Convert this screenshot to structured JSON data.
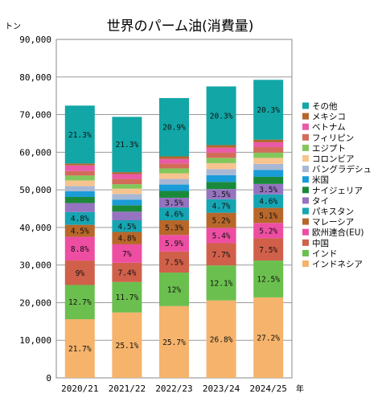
{
  "chart_data": {
    "type": "bar",
    "stacked": true,
    "title": "世界のパーム油(消費量)",
    "ylabel": "トン",
    "xlabel": "年",
    "ylim": [
      0,
      90000
    ],
    "yticks": [
      "0",
      "10,000",
      "20,000",
      "30,000",
      "40,000",
      "50,000",
      "60,000",
      "70,000",
      "80,000",
      "90,000"
    ],
    "grid": true,
    "legend_position": "right",
    "categories": [
      "2020/21",
      "2021/22",
      "2022/23",
      "2023/24",
      "2024/25"
    ],
    "series": [
      {
        "name": "インドネシア",
        "color": "#F5B36B",
        "values": [
          15600,
          17400,
          19100,
          20600,
          21400
        ],
        "labels": [
          "21.7%",
          "25.1%",
          "25.7%",
          "26.8%",
          "27.2%"
        ]
      },
      {
        "name": "インド",
        "color": "#6BBF4E",
        "values": [
          9100,
          8100,
          8900,
          9300,
          9800
        ],
        "labels": [
          "12.7%",
          "11.7%",
          "12%",
          "12.1%",
          "12.5%"
        ]
      },
      {
        "name": "中国",
        "color": "#D0604A",
        "values": [
          6500,
          5100,
          5600,
          5900,
          5900
        ],
        "labels": [
          "9%",
          "7.4%",
          "7.5%",
          "7.7%",
          "7.5%"
        ]
      },
      {
        "name": "欧州連合(EU)",
        "color": "#EE4EA2",
        "values": [
          6300,
          4900,
          4400,
          4100,
          4100
        ],
        "labels": [
          "8.8%",
          "7%",
          "5.9%",
          "5.4%",
          "5.2%"
        ]
      },
      {
        "name": "マレーシア",
        "color": "#B8672A",
        "values": [
          3200,
          3300,
          3900,
          4000,
          4000
        ],
        "labels": [
          "4.5%",
          "4.8%",
          "5.3%",
          "5.2%",
          "5.1%"
        ]
      },
      {
        "name": "パキスタン",
        "color": "#16A5B2",
        "values": [
          3400,
          3100,
          3400,
          3600,
          3600
        ],
        "labels": [
          "4.8%",
          "4.5%",
          "4.6%",
          "4.7%",
          "4.6%"
        ]
      },
      {
        "name": "タイ",
        "color": "#9573C0",
        "values": [
          2400,
          2300,
          2600,
          2700,
          2750
        ],
        "labels": [
          "",
          "",
          "3.5%",
          "3.5%",
          "3.5%"
        ]
      },
      {
        "name": "ナイジェリア",
        "color": "#1A8A3A",
        "values": [
          1600,
          1700,
          1800,
          1900,
          1900
        ],
        "labels": [
          "",
          "",
          "",
          "",
          ""
        ]
      },
      {
        "name": "米国",
        "color": "#1A9CD8",
        "values": [
          1500,
          1500,
          1700,
          1800,
          1850
        ],
        "labels": [
          "",
          "",
          "",
          "",
          ""
        ]
      },
      {
        "name": "バングラデシュ",
        "color": "#A8B8D4",
        "values": [
          1400,
          1500,
          1500,
          1600,
          1600
        ],
        "labels": [
          "",
          "",
          "",
          "",
          ""
        ]
      },
      {
        "name": "コロンビア",
        "color": "#F7C48F",
        "values": [
          1500,
          1400,
          1500,
          1600,
          1600
        ],
        "labels": [
          "",
          "",
          "",
          "",
          ""
        ]
      },
      {
        "name": "エジプト",
        "color": "#82C75C",
        "values": [
          1300,
          1200,
          1300,
          1400,
          1400
        ],
        "labels": [
          "",
          "",
          "",
          "",
          ""
        ]
      },
      {
        "name": "フィリピン",
        "color": "#D36B5A",
        "values": [
          1200,
          1400,
          1300,
          1400,
          1450
        ],
        "labels": [
          "",
          "",
          "",
          "",
          ""
        ]
      },
      {
        "name": "ベトナム",
        "color": "#EA5AA8",
        "values": [
          1500,
          1300,
          1200,
          1300,
          1300
        ],
        "labels": [
          "",
          "",
          "",
          "",
          ""
        ]
      },
      {
        "name": "メキシコ",
        "color": "#B5652E",
        "values": [
          500,
          500,
          700,
          700,
          700
        ],
        "labels": [
          "",
          "",
          "",
          "",
          ""
        ]
      },
      {
        "name": "その他",
        "color": "#12A6A6",
        "values": [
          15400,
          14700,
          15500,
          15600,
          15900
        ],
        "labels": [
          "21.3%",
          "21.3%",
          "20.9%",
          "20.3%",
          "20.3%"
        ]
      }
    ]
  }
}
